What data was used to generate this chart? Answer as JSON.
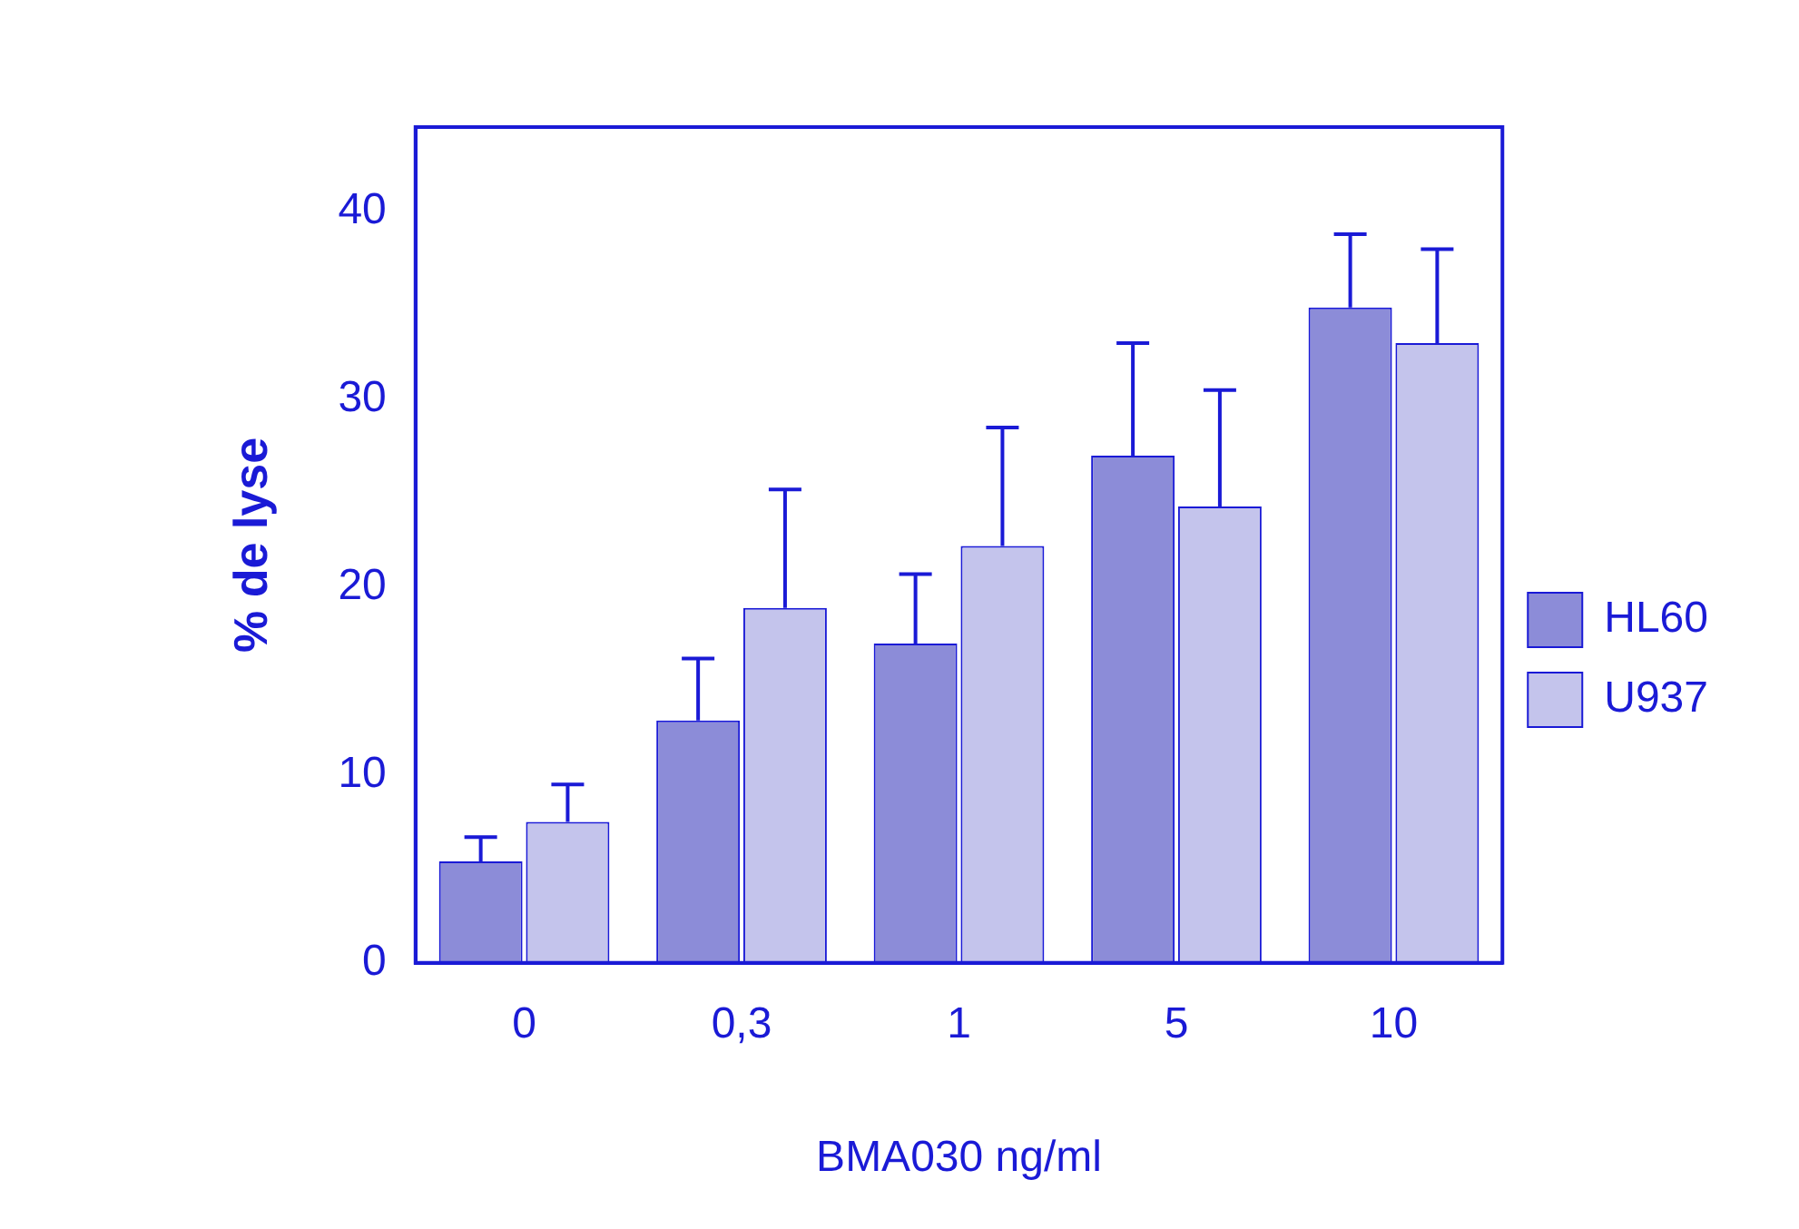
{
  "chart_data": {
    "type": "bar",
    "xlabel": "BMA030 ng/ml",
    "ylabel": "% de lyse",
    "categories": [
      "0",
      "0,3",
      "1",
      "5",
      "10"
    ],
    "series": [
      {
        "name": "HL60",
        "color": "#8c8cd8",
        "values": [
          5.4,
          12.9,
          17.0,
          27.0,
          34.9
        ],
        "errors": [
          [
            5.4,
            6.7
          ],
          [
            12.9,
            16.2
          ],
          [
            17.0,
            20.7
          ],
          [
            27.0,
            33.0
          ],
          [
            34.9,
            38.8
          ]
        ]
      },
      {
        "name": "U937",
        "color": "#c4c4ec",
        "values": [
          7.5,
          18.9,
          22.2,
          24.3,
          33.0
        ],
        "errors": [
          [
            7.5,
            9.5
          ],
          [
            18.9,
            25.2
          ],
          [
            22.2,
            28.5
          ],
          [
            24.3,
            30.5
          ],
          [
            33.0,
            38.0
          ]
        ]
      }
    ],
    "ylim": [
      0,
      44.5
    ],
    "yticks": [
      0,
      10,
      20,
      30,
      40
    ],
    "grid": false,
    "legend": "right"
  }
}
